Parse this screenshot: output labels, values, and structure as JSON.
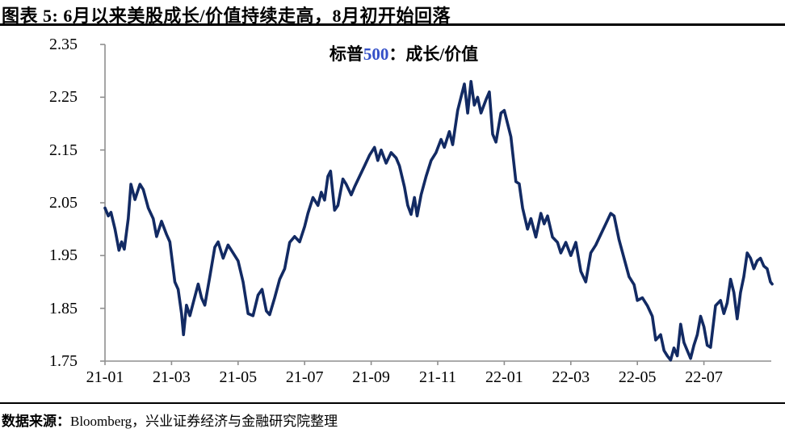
{
  "header": {
    "title": "图表 5: 6月以来美股成长/价值持续走高，8月初开始回落"
  },
  "chart": {
    "title_prefix": "标普",
    "title_number": "500",
    "title_suffix": "：成长/价值"
  },
  "footer": {
    "source_label": "数据来源：",
    "source_text": "Bloomberg，兴业证券经济与金融研究院整理"
  },
  "colors": {
    "series_line": "#122a63",
    "axis": "#8f8f8f",
    "text": "#000000",
    "title_number_accent": "#3450c8",
    "rule": "#000000"
  },
  "chart_data": {
    "type": "line",
    "title": "标普500：成长/价值",
    "x_ticks": [
      "21-01",
      "21-03",
      "21-05",
      "21-07",
      "21-09",
      "21-11",
      "22-01",
      "22-03",
      "22-05",
      "22-07"
    ],
    "x_tick_spacing_months": 2,
    "x_months_base": "2021-01",
    "x_range_months": [
      0,
      20.05
    ],
    "y_ticks": [
      1.75,
      1.85,
      1.95,
      2.05,
      2.15,
      2.25,
      2.35
    ],
    "ylim": [
      1.75,
      2.35
    ],
    "grid": false,
    "legend": "none",
    "series": [
      {
        "name": "标普500：成长/价值",
        "color": "#122a63",
        "x_unit": "months since 2021-01",
        "points": [
          [
            0,
            2.04
          ],
          [
            0.1,
            2.025
          ],
          [
            0.18,
            2.032
          ],
          [
            0.3,
            2.0
          ],
          [
            0.42,
            1.96
          ],
          [
            0.5,
            1.976
          ],
          [
            0.58,
            1.962
          ],
          [
            0.7,
            2.02
          ],
          [
            0.78,
            2.085
          ],
          [
            0.9,
            2.056
          ],
          [
            1.05,
            2.085
          ],
          [
            1.15,
            2.075
          ],
          [
            1.3,
            2.04
          ],
          [
            1.45,
            2.02
          ],
          [
            1.55,
            1.986
          ],
          [
            1.7,
            2.015
          ],
          [
            1.85,
            1.99
          ],
          [
            1.95,
            1.976
          ],
          [
            2.1,
            1.9
          ],
          [
            2.2,
            1.886
          ],
          [
            2.3,
            1.84
          ],
          [
            2.36,
            1.8
          ],
          [
            2.45,
            1.856
          ],
          [
            2.55,
            1.836
          ],
          [
            2.65,
            1.86
          ],
          [
            2.8,
            1.896
          ],
          [
            2.9,
            1.87
          ],
          [
            3.0,
            1.856
          ],
          [
            3.15,
            1.91
          ],
          [
            3.3,
            1.966
          ],
          [
            3.4,
            1.976
          ],
          [
            3.55,
            1.945
          ],
          [
            3.7,
            1.97
          ],
          [
            3.85,
            1.955
          ],
          [
            4.0,
            1.94
          ],
          [
            4.15,
            1.9
          ],
          [
            4.3,
            1.84
          ],
          [
            4.45,
            1.836
          ],
          [
            4.6,
            1.875
          ],
          [
            4.72,
            1.886
          ],
          [
            4.85,
            1.845
          ],
          [
            4.95,
            1.838
          ],
          [
            5.1,
            1.87
          ],
          [
            5.25,
            1.905
          ],
          [
            5.4,
            1.925
          ],
          [
            5.55,
            1.975
          ],
          [
            5.7,
            1.986
          ],
          [
            5.85,
            1.976
          ],
          [
            6.0,
            2.005
          ],
          [
            6.1,
            2.03
          ],
          [
            6.25,
            2.06
          ],
          [
            6.4,
            2.045
          ],
          [
            6.5,
            2.07
          ],
          [
            6.6,
            2.055
          ],
          [
            6.7,
            2.1
          ],
          [
            6.78,
            2.11
          ],
          [
            6.9,
            2.036
          ],
          [
            7.0,
            2.045
          ],
          [
            7.15,
            2.095
          ],
          [
            7.25,
            2.085
          ],
          [
            7.4,
            2.065
          ],
          [
            7.5,
            2.08
          ],
          [
            7.65,
            2.1
          ],
          [
            7.8,
            2.12
          ],
          [
            7.95,
            2.14
          ],
          [
            8.1,
            2.155
          ],
          [
            8.2,
            2.13
          ],
          [
            8.3,
            2.15
          ],
          [
            8.45,
            2.125
          ],
          [
            8.6,
            2.145
          ],
          [
            8.75,
            2.135
          ],
          [
            8.85,
            2.12
          ],
          [
            9.0,
            2.08
          ],
          [
            9.1,
            2.045
          ],
          [
            9.2,
            2.028
          ],
          [
            9.3,
            2.06
          ],
          [
            9.38,
            2.025
          ],
          [
            9.5,
            2.065
          ],
          [
            9.65,
            2.1
          ],
          [
            9.8,
            2.13
          ],
          [
            9.95,
            2.145
          ],
          [
            10.1,
            2.17
          ],
          [
            10.2,
            2.155
          ],
          [
            10.35,
            2.185
          ],
          [
            10.45,
            2.16
          ],
          [
            10.6,
            2.225
          ],
          [
            10.7,
            2.25
          ],
          [
            10.8,
            2.275
          ],
          [
            10.9,
            2.22
          ],
          [
            11.0,
            2.28
          ],
          [
            11.1,
            2.235
          ],
          [
            11.2,
            2.25
          ],
          [
            11.3,
            2.22
          ],
          [
            11.45,
            2.245
          ],
          [
            11.55,
            2.26
          ],
          [
            11.65,
            2.18
          ],
          [
            11.75,
            2.165
          ],
          [
            11.9,
            2.22
          ],
          [
            12.0,
            2.225
          ],
          [
            12.1,
            2.2
          ],
          [
            12.2,
            2.175
          ],
          [
            12.35,
            2.09
          ],
          [
            12.45,
            2.086
          ],
          [
            12.55,
            2.04
          ],
          [
            12.7,
            2.0
          ],
          [
            12.8,
            2.02
          ],
          [
            12.95,
            1.985
          ],
          [
            13.1,
            2.03
          ],
          [
            13.2,
            2.01
          ],
          [
            13.3,
            2.025
          ],
          [
            13.45,
            1.985
          ],
          [
            13.6,
            1.975
          ],
          [
            13.7,
            1.955
          ],
          [
            13.85,
            1.975
          ],
          [
            14.0,
            1.95
          ],
          [
            14.15,
            1.975
          ],
          [
            14.3,
            1.92
          ],
          [
            14.45,
            1.9
          ],
          [
            14.6,
            1.955
          ],
          [
            14.75,
            1.97
          ],
          [
            14.9,
            1.99
          ],
          [
            15.05,
            2.01
          ],
          [
            15.2,
            2.03
          ],
          [
            15.3,
            2.025
          ],
          [
            15.45,
            1.98
          ],
          [
            15.6,
            1.945
          ],
          [
            15.75,
            1.91
          ],
          [
            15.9,
            1.895
          ],
          [
            16.0,
            1.865
          ],
          [
            16.15,
            1.87
          ],
          [
            16.3,
            1.855
          ],
          [
            16.45,
            1.835
          ],
          [
            16.55,
            1.79
          ],
          [
            16.7,
            1.8
          ],
          [
            16.8,
            1.77
          ],
          [
            16.9,
            1.76
          ],
          [
            17.0,
            1.752
          ],
          [
            17.1,
            1.775
          ],
          [
            17.2,
            1.76
          ],
          [
            17.3,
            1.82
          ],
          [
            17.4,
            1.785
          ],
          [
            17.5,
            1.77
          ],
          [
            17.6,
            1.755
          ],
          [
            17.7,
            1.78
          ],
          [
            17.8,
            1.8
          ],
          [
            17.9,
            1.835
          ],
          [
            18.0,
            1.815
          ],
          [
            18.1,
            1.78
          ],
          [
            18.2,
            1.776
          ],
          [
            18.35,
            1.855
          ],
          [
            18.5,
            1.865
          ],
          [
            18.6,
            1.84
          ],
          [
            18.7,
            1.86
          ],
          [
            18.8,
            1.905
          ],
          [
            18.9,
            1.88
          ],
          [
            19.0,
            1.83
          ],
          [
            19.1,
            1.88
          ],
          [
            19.2,
            1.91
          ],
          [
            19.3,
            1.955
          ],
          [
            19.4,
            1.945
          ],
          [
            19.5,
            1.925
          ],
          [
            19.6,
            1.94
          ],
          [
            19.7,
            1.945
          ],
          [
            19.8,
            1.93
          ],
          [
            19.9,
            1.925
          ],
          [
            20.0,
            1.9
          ],
          [
            20.05,
            1.896
          ]
        ]
      }
    ]
  }
}
